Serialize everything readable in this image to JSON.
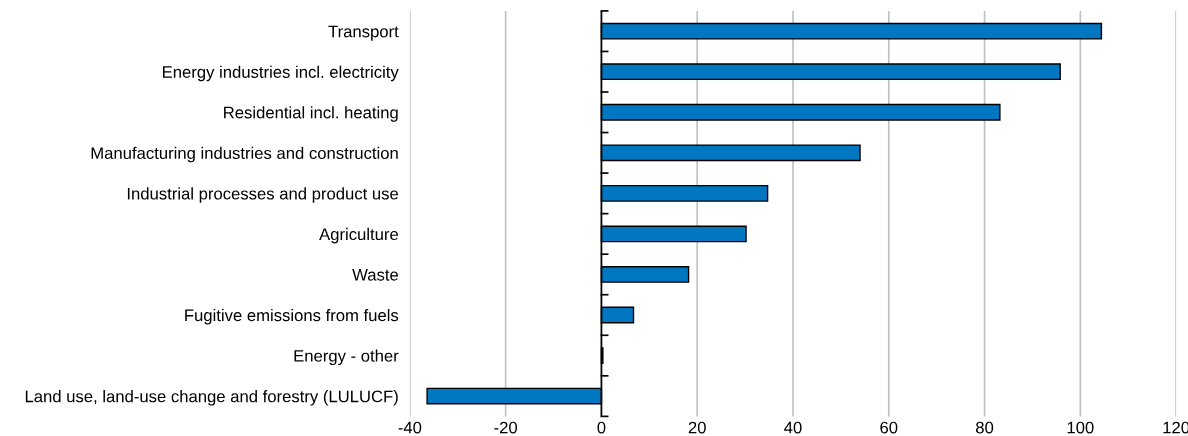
{
  "chart_data": {
    "type": "bar",
    "orientation": "horizontal",
    "categories": [
      "Transport",
      "Energy industries incl. electricity",
      "Residential incl. heating",
      "Manufacturing industries and construction",
      "Industrial processes and product use",
      "Agriculture",
      "Waste",
      "Fugitive emissions from fuels",
      "Energy - other",
      "Land use, land-use change and forestry (LULUCF)"
    ],
    "values": [
      104.4,
      95.8,
      83.2,
      54.0,
      34.7,
      30.2,
      18.2,
      6.7,
      0.3,
      -36.4
    ],
    "color": "#0077c0",
    "xlim": [
      -40,
      120
    ],
    "xticks": [
      -40,
      -20,
      0,
      20,
      40,
      60,
      80,
      100,
      120
    ],
    "grid": "x"
  }
}
